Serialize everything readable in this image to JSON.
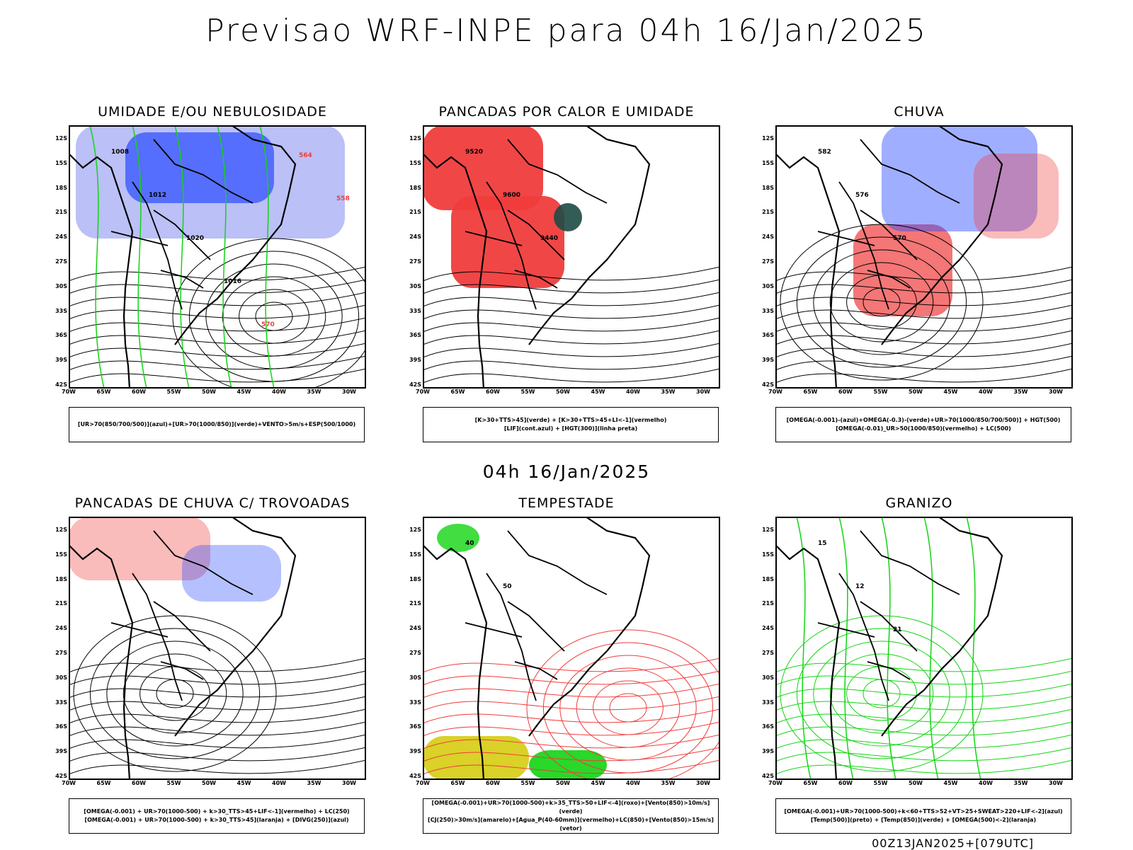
{
  "header": {
    "title": "Previsao WRF-INPE  para 04h 16/Jan/2025",
    "mid_title": "04h 16/Jan/2025",
    "footer": "00Z13JAN2025+[079UTC]"
  },
  "axes": {
    "lat_labels": [
      "12S",
      "15S",
      "18S",
      "21S",
      "24S",
      "27S",
      "30S",
      "33S",
      "36S",
      "39S",
      "42S"
    ],
    "lon_labels": [
      "70W",
      "65W",
      "60W",
      "55W",
      "50W",
      "45W",
      "40W",
      "35W",
      "30W"
    ]
  },
  "panels": [
    {
      "title": "UMIDADE E/OU NEBULOSIDADE",
      "legend": [
        "[UR>70(850/700/500)](azul)+[UR>70(1000/850)](verde)+VENTO>5m/s+ESP(500/1000)"
      ],
      "labels": [
        "1008",
        "1012",
        "1020",
        "1016",
        "570",
        "564",
        "558"
      ]
    },
    {
      "title": "PANCADAS POR CALOR E UMIDADE",
      "legend": [
        "[K>30+TTS>45](verde) + [K>30+TTS>45+LI<-1](vermelho)",
        "[LIF](cont.azul) + [HGT(300)](linha preta)"
      ],
      "labels": [
        "9520",
        "9600",
        "9440"
      ]
    },
    {
      "title": "CHUVA",
      "legend": [
        "[OMEGA(-0.001)-(azul)+OMEGA(-0.3)-(verde)+UR>70(1000/850/700/500)] + HGT(500)",
        "[OMEGA(-0.01)_UR>50(1000/850)(vermelho) + LC(500)"
      ],
      "labels": [
        "582",
        "576",
        "570"
      ]
    },
    {
      "title": "PANCADAS DE CHUVA C/ TROVOADAS",
      "legend": [
        "[OMEGA(-0.001) + UR>70(1000-500) + k>30_TTS>45+LIF<-1](vermelho) + LC(250)",
        "[OMEGA(-0.001) + UR>70(1000-500) + k>30_TTS>45](laranja) + [DIVG(250)](azul)"
      ],
      "labels": []
    },
    {
      "title": "TEMPESTADE",
      "legend": [
        "[OMEGA(-0.001)+UR>70(1000-500)+k>35_TTS>50+LIF<-4](roxo)+[Vento(850)>10m/s](verde)",
        "[CJ(250)>30m/s](amarelo)+[Agua_P(40-60mm)](vermelho)+LC(850)+[Vento(850)>15m/s](vetor)"
      ],
      "labels": [
        "40",
        "50"
      ]
    },
    {
      "title": "GRANIZO",
      "legend": [
        "[OMEGA(-0.001)+UR>70(1000-500)+k<60+TTS>52+VT>25+SWEAT>220+LIF<-2](azul)",
        "[Temp(500)](preto) + [Temp(850)](verde) + [OMEGA(500)<-2](laranja)"
      ],
      "labels": [
        "15",
        "12",
        "21"
      ]
    }
  ],
  "colors": {
    "blue": "#2a4bff",
    "lightblue": "#aab0f5",
    "green": "#12d412",
    "red": "#f03c3c",
    "yellow": "#d8cf1e",
    "darkgreen": "#1e4a45",
    "orange": "#ff8a1a"
  }
}
